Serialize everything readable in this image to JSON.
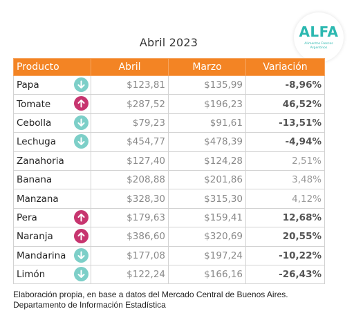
{
  "title": "Abril 2023",
  "logo": {
    "word": "ALFA",
    "subtitle": "Alimentos Frescos Argentinos"
  },
  "columns": [
    "Producto",
    "Abril",
    "Marzo",
    "Variación"
  ],
  "rows": [
    {
      "producto": "Papa",
      "abril": "$123,81",
      "marzo": "$135,99",
      "variacion": "-8,96%",
      "trend": "down"
    },
    {
      "producto": "Tomate",
      "abril": "$287,52",
      "marzo": "$196,23",
      "variacion": "46,52%",
      "trend": "up"
    },
    {
      "producto": "Cebolla",
      "abril": "$79,23",
      "marzo": "$91,61",
      "variacion": "-13,51%",
      "trend": "down"
    },
    {
      "producto": "Lechuga",
      "abril": "$454,77",
      "marzo": "$478,39",
      "variacion": "-4,94%",
      "trend": "down"
    },
    {
      "producto": "Zanahoria",
      "abril": "$127,40",
      "marzo": "$124,28",
      "variacion": "2,51%",
      "trend": "none"
    },
    {
      "producto": "Banana",
      "abril": "$208,88",
      "marzo": "$201,86",
      "variacion": "3,48%",
      "trend": "none"
    },
    {
      "producto": "Manzana",
      "abril": "$328,30",
      "marzo": "$315,30",
      "variacion": "4,12%",
      "trend": "none"
    },
    {
      "producto": "Pera",
      "abril": "$179,63",
      "marzo": "$159,41",
      "variacion": "12,68%",
      "trend": "up"
    },
    {
      "producto": "Naranja",
      "abril": "$386,60",
      "marzo": "$320,69",
      "variacion": "20,55%",
      "trend": "up"
    },
    {
      "producto": "Mandarina",
      "abril": "$177,08",
      "marzo": "$197,24",
      "variacion": "-10,22%",
      "trend": "down"
    },
    {
      "producto": "Limón",
      "abril": "$122,24",
      "marzo": "$166,16",
      "variacion": "-26,43%",
      "trend": "down"
    }
  ],
  "footnote": {
    "line1": "Elaboración propia, en base a datos del Mercado Central de Buenos Aires.",
    "line2": "Departamento de Información Estadística"
  },
  "colors": {
    "header": "#f38424",
    "down_indicator": "#7dcfc8",
    "up_indicator": "#c7356f",
    "logo": "#2bb8b0"
  }
}
